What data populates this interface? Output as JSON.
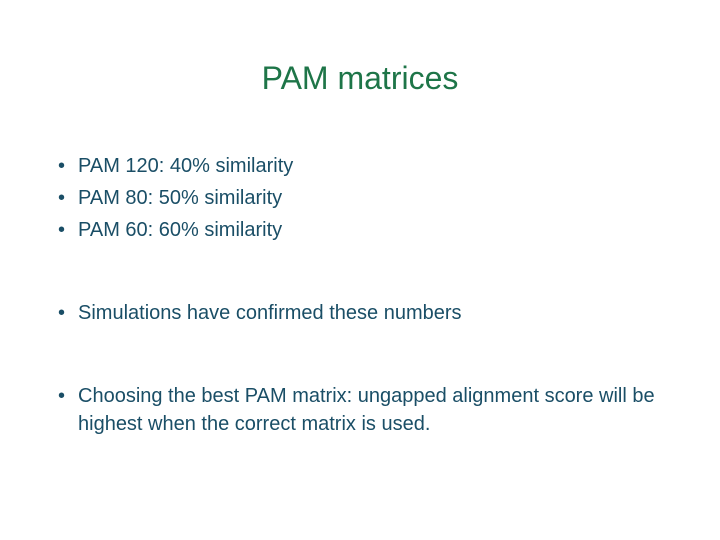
{
  "title": "PAM matrices",
  "title_color": "#1e7548",
  "title_fontsize": 32,
  "text_color": "#1a4e66",
  "bullet_fontsize": 20,
  "background_color": "#ffffff",
  "groups": [
    {
      "items": [
        "PAM 120: 40% similarity",
        "PAM 80: 50% similarity",
        "PAM 60: 60% similarity"
      ]
    },
    {
      "items": [
        "Simulations have confirmed these numbers"
      ]
    },
    {
      "items": [
        "Choosing the best PAM matrix: ungapped alignment score will be highest when the correct matrix is used."
      ]
    }
  ]
}
